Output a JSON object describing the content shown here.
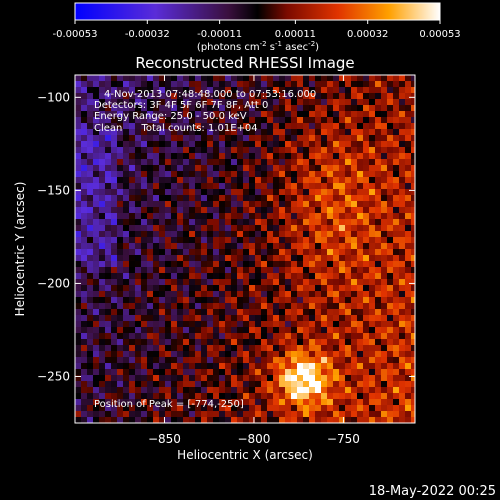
{
  "chart_data": {
    "type": "heatmap",
    "title": "Reconstructed RHESSI Image",
    "xlabel": "Heliocentric X (arcsec)",
    "ylabel": "Heliocentric Y (arcsec)",
    "xlim": [
      -900,
      -710
    ],
    "ylim": [
      -275,
      -88
    ],
    "x_ticks": [
      -850,
      -800,
      -750
    ],
    "y_ticks": [
      -100,
      -150,
      -200,
      -250
    ],
    "colorbar": {
      "range": [
        -0.00053,
        0.00053
      ],
      "tick_values": [
        -0.00053,
        -0.00032,
        -0.00011,
        0.00011,
        0.00032,
        0.00053
      ],
      "tick_labels": [
        "-0.00053",
        "-0.00032",
        "-0.00011",
        "0.00011",
        "0.00032",
        "0.00053"
      ],
      "unit_text": "(photons cm",
      "unit_sup1": "-2",
      "unit_mid": " s",
      "unit_sup2": "-1",
      "unit_mid2": " asec",
      "unit_sup3": "-2",
      "unit_end": ")"
    },
    "annotations": [
      "4-Nov-2013 07:48:48.000 to 07:53:16.000",
      "Detectors: 3F 4F 5F 6F 7F 8F, Att 0",
      "Energy Range: 25.0 - 50.0 keV",
      "Clean      Total counts: 1.01E+04"
    ],
    "peak_label": "Position of Peak = [-774,-250]",
    "peak": {
      "x": -774,
      "y": -250
    },
    "grid": false
  },
  "timestamp": "18-May-2022 00:25"
}
